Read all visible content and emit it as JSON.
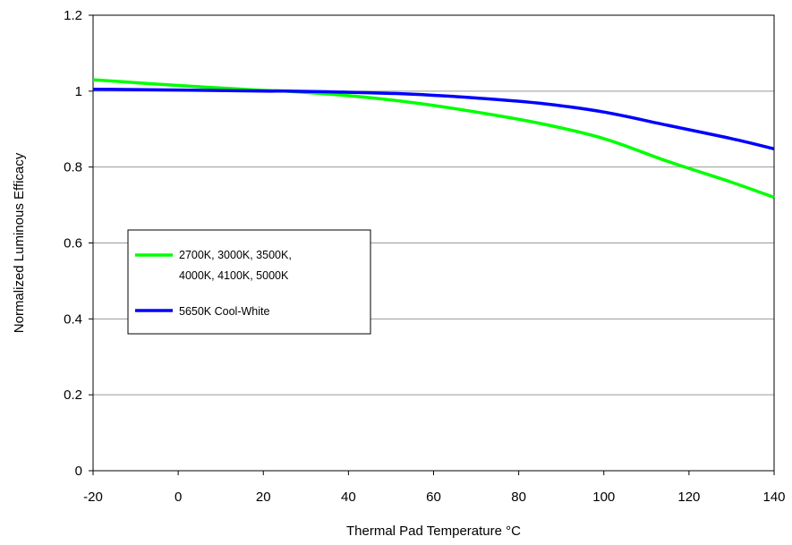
{
  "chart_data": {
    "type": "line",
    "title": "",
    "xlabel": "Thermal Pad Temperature °C",
    "ylabel": "Normalized Luminous Efficacy",
    "xlim": [
      -20,
      140
    ],
    "ylim": [
      0,
      1.2
    ],
    "x_ticks": [
      -20,
      0,
      20,
      40,
      60,
      80,
      100,
      120,
      140
    ],
    "x_tick_labels": [
      "-20",
      "0",
      "20",
      "40",
      "60",
      "80",
      "100",
      "120",
      "140"
    ],
    "y_ticks": [
      0,
      0.2,
      0.4,
      0.6,
      0.8,
      1,
      1.2
    ],
    "y_tick_labels": [
      "0",
      "0.2",
      "0.4",
      "0.6",
      "0.8",
      "1",
      "1.2"
    ],
    "grid": "horizontal",
    "legend_position": "left-middle",
    "series": [
      {
        "name": "2700K, 3000K, 3500K, 4000K, 4100K, 5000K",
        "legend_lines": [
          "2700K, 3000K, 3500K,",
          "4000K, 4100K, 5000K"
        ],
        "color": "#00ff00",
        "x": [
          -20,
          0,
          20,
          25,
          40,
          55,
          70,
          85,
          100,
          115,
          130,
          140
        ],
        "y": [
          1.03,
          1.015,
          1.002,
          1.0,
          0.988,
          0.97,
          0.945,
          0.915,
          0.875,
          0.815,
          0.76,
          0.72
        ]
      },
      {
        "name": "5650K Cool-White",
        "legend_lines": [
          "5650K Cool-White"
        ],
        "color": "#0000ff",
        "x": [
          -20,
          0,
          20,
          25,
          40,
          55,
          70,
          85,
          100,
          115,
          130,
          140
        ],
        "y": [
          1.005,
          1.003,
          1.0,
          1.0,
          0.997,
          0.992,
          0.982,
          0.968,
          0.945,
          0.91,
          0.875,
          0.848
        ]
      }
    ]
  }
}
